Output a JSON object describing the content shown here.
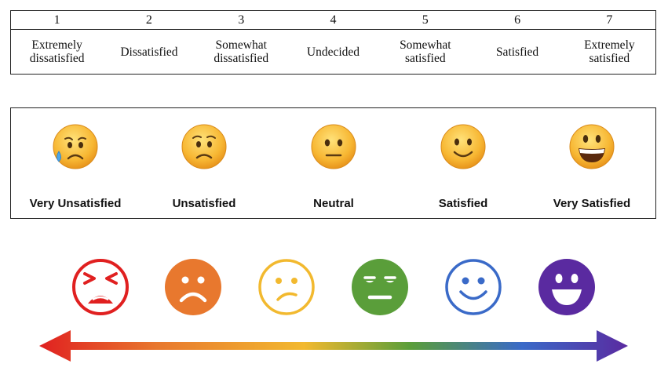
{
  "scale7": {
    "items": [
      {
        "num": "1",
        "label": "Extremely dissatisfied"
      },
      {
        "num": "2",
        "label": "Dissatisfied"
      },
      {
        "num": "3",
        "label": "Somewhat dissatisfied"
      },
      {
        "num": "4",
        "label": "Undecided"
      },
      {
        "num": "5",
        "label": "Somewhat satisfied"
      },
      {
        "num": "6",
        "label": "Satisfied"
      },
      {
        "num": "7",
        "label": "Extremely satisfied"
      }
    ]
  },
  "scale5": {
    "items": [
      {
        "label": "Very Unsatisfied",
        "icon": "sad-tear-emoji"
      },
      {
        "label": "Unsatisfied",
        "icon": "worried-emoji"
      },
      {
        "label": "Neutral",
        "icon": "neutral-emoji"
      },
      {
        "label": "Satisfied",
        "icon": "slight-smile-emoji"
      },
      {
        "label": "Very Satisfied",
        "icon": "big-grin-emoji"
      }
    ]
  },
  "icons": {
    "items": [
      {
        "icon": "persevering-face-icon",
        "color": "#e02020"
      },
      {
        "icon": "frowning-face-icon",
        "color": "#e8782e"
      },
      {
        "icon": "confused-face-icon",
        "color": "#f2b92f"
      },
      {
        "icon": "neutral-face-icon",
        "color": "#5a9e3a"
      },
      {
        "icon": "smiling-face-icon",
        "color": "#3a6ac8"
      },
      {
        "icon": "grinning-face-icon",
        "color": "#5a2aa0"
      }
    ],
    "arrow_colors": [
      "#e02020",
      "#e8782e",
      "#f2b92f",
      "#5a9e3a",
      "#3a6ac8",
      "#5a2aa0"
    ]
  }
}
